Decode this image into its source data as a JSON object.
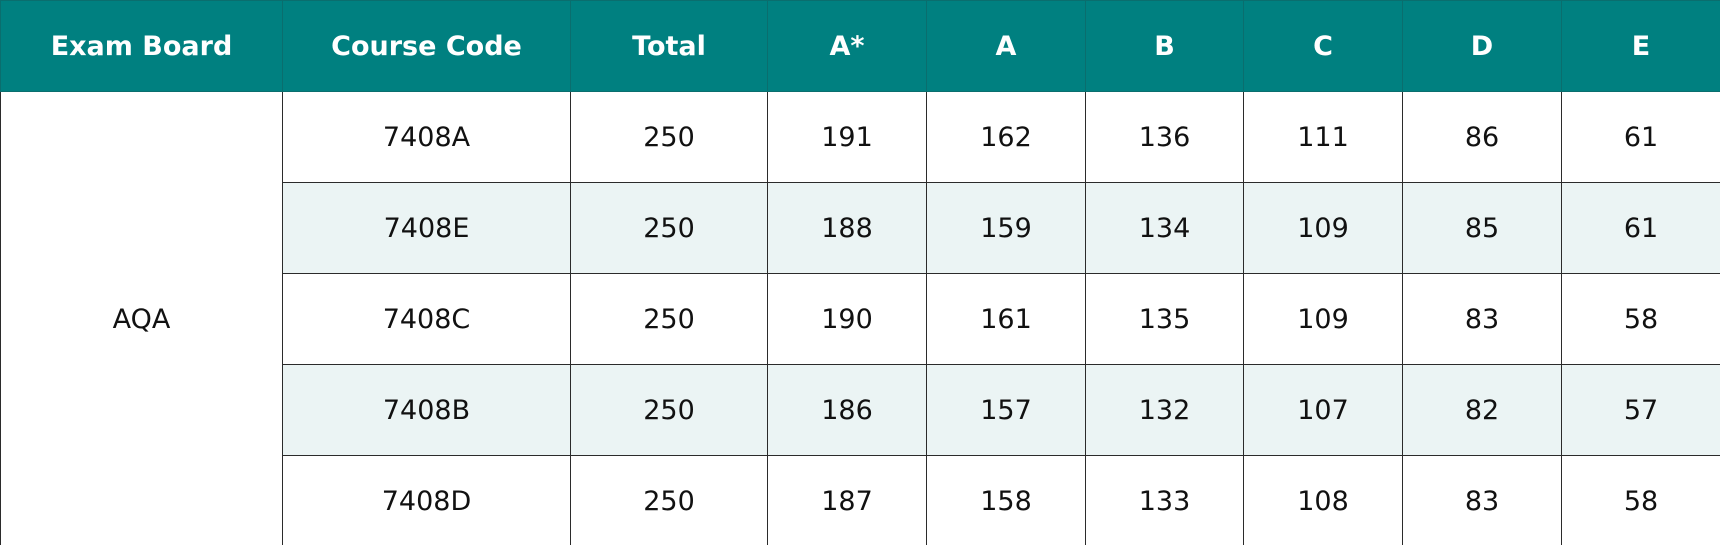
{
  "table": {
    "headers": [
      "Exam Board",
      "Course Code",
      "Total",
      "A*",
      "A",
      "B",
      "C",
      "D",
      "E"
    ],
    "board": "AQA",
    "rows": [
      [
        "7408A",
        "250",
        "191",
        "162",
        "136",
        "111",
        "86",
        "61"
      ],
      [
        "7408E",
        "250",
        "188",
        "159",
        "134",
        "109",
        "85",
        "61"
      ],
      [
        "7408C",
        "250",
        "190",
        "161",
        "135",
        "109",
        "83",
        "58"
      ],
      [
        "7408B",
        "250",
        "186",
        "157",
        "132",
        "107",
        "82",
        "57"
      ],
      [
        "7408D",
        "250",
        "187",
        "158",
        "133",
        "108",
        "83",
        "58"
      ]
    ]
  }
}
